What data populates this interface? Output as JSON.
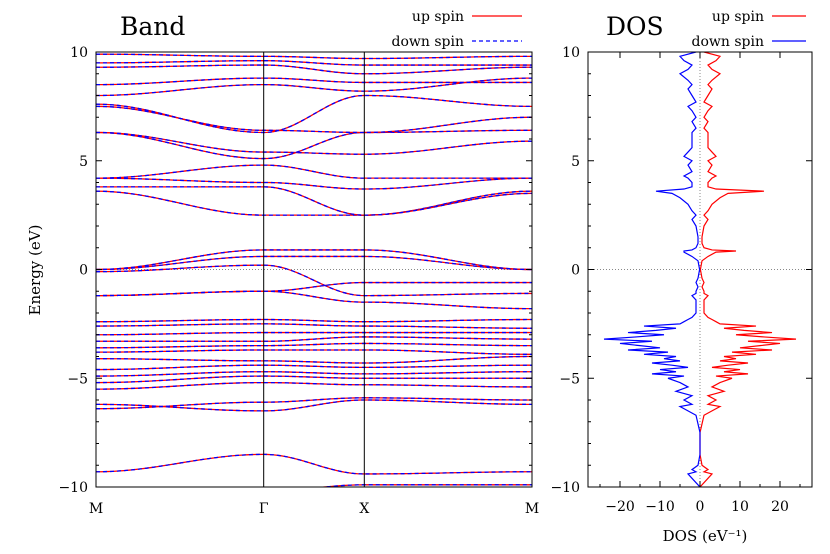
{
  "chart_data": [
    {
      "type": "line",
      "title": "Band",
      "ylabel": "Energy (eV)",
      "xlabel": "",
      "ylim": [
        -10,
        10
      ],
      "y_ticks": [
        "10",
        "5",
        "0",
        "−5",
        "−10"
      ],
      "y_tick_values": [
        10,
        5,
        0,
        -5,
        -10
      ],
      "k_points": [
        {
          "label": "M",
          "k": 0
        },
        {
          "label": "Γ",
          "k": 1
        },
        {
          "label": "X",
          "k": 1.6
        },
        {
          "label": "M",
          "k": 2.6
        }
      ],
      "fermi_level": 0,
      "legend": {
        "position": "top-right",
        "entries": [
          {
            "name": "up spin",
            "color": "#ff0000",
            "style": "solid"
          },
          {
            "name": "down spin",
            "color": "#0000ff",
            "style": "dashed"
          }
        ]
      },
      "series": [
        {
          "name": "up spin",
          "color": "#ff0000",
          "bands": [
            [
              -9.3,
              -8.5,
              -9.4,
              -9.3
            ],
            [
              -10.2,
              -10.2,
              -9.9,
              -9.9
            ],
            [
              -6.2,
              -6.5,
              -6.0,
              -6.2
            ],
            [
              -6.4,
              -6.1,
              -5.9,
              -6.0
            ],
            [
              -5.5,
              -5.2,
              -5.3,
              -5.4
            ],
            [
              -5.2,
              -4.9,
              -5.0,
              -5.0
            ],
            [
              -4.9,
              -4.7,
              -4.8,
              -4.7
            ],
            [
              -4.6,
              -4.4,
              -4.5,
              -4.4
            ],
            [
              -4.1,
              -4.2,
              -4.3,
              -4.0
            ],
            [
              -3.8,
              -3.7,
              -3.7,
              -3.9
            ],
            [
              -3.6,
              -3.5,
              -3.4,
              -3.5
            ],
            [
              -3.3,
              -3.3,
              -3.1,
              -3.2
            ],
            [
              -3.0,
              -2.9,
              -2.9,
              -2.9
            ],
            [
              -2.6,
              -2.5,
              -2.6,
              -2.7
            ],
            [
              -2.4,
              -2.3,
              -2.4,
              -2.3
            ],
            [
              -1.2,
              -1.0,
              -0.6,
              -0.6
            ],
            [
              -1.2,
              -1.0,
              -1.5,
              -1.8
            ],
            [
              -0.1,
              0.2,
              -1.2,
              -1.1
            ],
            [
              0.0,
              0.6,
              0.6,
              0.0
            ],
            [
              0.0,
              0.9,
              0.9,
              0.0
            ],
            [
              3.6,
              2.5,
              2.5,
              3.6
            ],
            [
              3.8,
              3.8,
              2.5,
              3.5
            ],
            [
              4.2,
              4.0,
              3.7,
              4.2
            ],
            [
              4.2,
              4.8,
              4.2,
              4.2
            ],
            [
              6.3,
              5.4,
              5.3,
              5.9
            ],
            [
              6.3,
              5.1,
              6.3,
              6.4
            ],
            [
              7.5,
              6.4,
              6.3,
              7.0
            ],
            [
              7.6,
              6.3,
              8.0,
              7.5
            ],
            [
              8.0,
              8.5,
              8.2,
              8.8
            ],
            [
              8.5,
              8.8,
              8.6,
              8.6
            ],
            [
              9.3,
              9.4,
              9.0,
              9.3
            ],
            [
              9.5,
              9.6,
              9.4,
              9.4
            ],
            [
              9.9,
              9.8,
              9.7,
              9.8
            ]
          ]
        },
        {
          "name": "down spin",
          "color": "#0000ff",
          "bands_same_as": "up spin"
        }
      ]
    },
    {
      "type": "line",
      "title": "DOS",
      "xlabel": "DOS (eV⁻¹)",
      "ylabel": "",
      "xlim": [
        -28,
        28
      ],
      "ylim": [
        -10,
        10
      ],
      "x_ticks": [
        "−20",
        "−10",
        "0",
        "10",
        "20"
      ],
      "x_tick_values": [
        -20,
        -10,
        0,
        10,
        20
      ],
      "y_ticks": [
        "10",
        "5",
        "0",
        "−5",
        "−10"
      ],
      "y_tick_values": [
        10,
        5,
        0,
        -5,
        -10
      ],
      "fermi_level": 0,
      "legend": {
        "position": "top-right",
        "entries": [
          {
            "name": "up spin",
            "color": "#ff0000",
            "style": "solid"
          },
          {
            "name": "down spin",
            "color": "#0000ff",
            "style": "solid"
          }
        ]
      },
      "energy": [
        -10,
        -9.6,
        -9.4,
        -9.3,
        -9.2,
        -9.0,
        -8.5,
        -7.5,
        -6.7,
        -6.5,
        -6.3,
        -6.2,
        -6.0,
        -5.8,
        -5.6,
        -5.4,
        -5.2,
        -5.0,
        -4.9,
        -4.8,
        -4.7,
        -4.6,
        -4.5,
        -4.4,
        -4.3,
        -4.2,
        -4.1,
        -4.0,
        -3.9,
        -3.8,
        -3.7,
        -3.6,
        -3.5,
        -3.4,
        -3.3,
        -3.2,
        -3.1,
        -3.0,
        -2.9,
        -2.8,
        -2.7,
        -2.6,
        -2.5,
        -2.4,
        -2.3,
        -2.2,
        -2.0,
        -1.8,
        -1.6,
        -1.4,
        -1.2,
        -1.1,
        -1.0,
        -0.8,
        -0.6,
        -0.4,
        -0.2,
        0.0,
        0.2,
        0.4,
        0.6,
        0.8,
        0.85,
        0.9,
        1.0,
        1.2,
        1.5,
        2.0,
        2.3,
        2.5,
        2.7,
        3.0,
        3.3,
        3.5,
        3.6,
        3.7,
        3.8,
        4.0,
        4.2,
        4.3,
        4.5,
        4.8,
        5.0,
        5.2,
        5.4,
        5.6,
        5.8,
        6.0,
        6.3,
        6.5,
        6.8,
        7.0,
        7.3,
        7.5,
        7.7,
        8.0,
        8.3,
        8.5,
        8.7,
        9.0,
        9.2,
        9.4,
        9.6,
        9.8,
        10.0
      ],
      "series": [
        {
          "name": "up spin",
          "color": "#ff0000",
          "values": [
            0,
            2,
            3,
            1,
            2,
            0.5,
            0,
            0,
            1,
            3,
            5,
            2,
            4,
            2,
            6,
            3,
            5,
            8,
            4,
            12,
            6,
            10,
            3,
            7,
            12,
            5,
            9,
            6,
            14,
            8,
            18,
            10,
            15,
            20,
            12,
            24,
            16,
            9,
            18,
            11,
            6,
            14,
            5,
            4,
            3,
            2,
            1,
            1,
            1,
            1,
            2,
            1,
            1,
            0.5,
            1,
            0.5,
            0.3,
            0.1,
            0.3,
            0.5,
            2,
            4,
            9,
            3,
            1,
            0.5,
            0.5,
            1,
            2,
            1,
            2,
            3,
            5,
            7,
            16,
            4,
            2,
            2,
            3,
            4,
            2,
            3,
            2,
            4,
            3,
            2,
            2,
            2,
            2,
            1,
            2,
            1,
            2,
            3,
            1,
            2,
            3,
            2,
            3,
            5,
            3,
            2,
            4,
            5,
            1
          ]
        },
        {
          "name": "down spin",
          "color": "#0000ff",
          "values": [
            0,
            -2,
            -3,
            -1,
            -2,
            -0.5,
            0,
            0,
            -1,
            -3,
            -5,
            -2,
            -4,
            -2,
            -6,
            -3,
            -5,
            -8,
            -4,
            -12,
            -6,
            -10,
            -3,
            -7,
            -12,
            -5,
            -9,
            -6,
            -14,
            -8,
            -18,
            -10,
            -15,
            -20,
            -12,
            -24,
            -16,
            -9,
            -18,
            -11,
            -6,
            -14,
            -5,
            -4,
            -3,
            -2,
            -1,
            -1,
            -1,
            -1,
            -2,
            -1,
            -1,
            -0.5,
            -1,
            -0.5,
            -0.3,
            -0.1,
            -0.3,
            -0.5,
            -2,
            -4,
            -4,
            -2,
            -1,
            -0.5,
            -0.5,
            -1,
            -2,
            -1,
            -2,
            -3,
            -5,
            -7,
            -11,
            -4,
            -2,
            -2,
            -3,
            -4,
            -2,
            -3,
            -2,
            -4,
            -3,
            -2,
            -2,
            -2,
            -2,
            -1,
            -2,
            -1,
            -2,
            -3,
            -1,
            -2,
            -3,
            -2,
            -3,
            -5,
            -3,
            -2,
            -4,
            -5,
            -1
          ]
        }
      ]
    }
  ]
}
